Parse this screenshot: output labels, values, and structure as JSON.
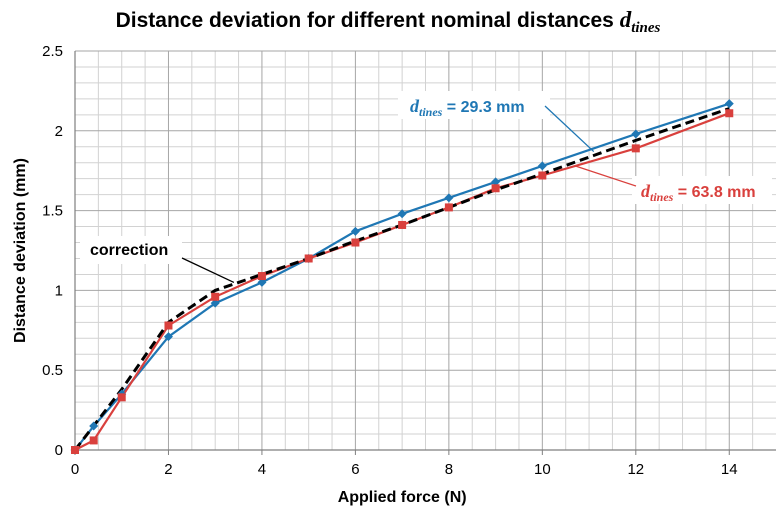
{
  "chart_data": {
    "type": "line",
    "title_prefix": "Distance deviation for different nominal distances ",
    "title_var": "d",
    "title_sub": "tines",
    "xlabel": "Applied force (N)",
    "ylabel": "Distance deviation (mm)",
    "xlim": [
      0,
      15
    ],
    "ylim": [
      0,
      2.5
    ],
    "x_ticks": [
      0,
      2,
      4,
      6,
      8,
      10,
      12,
      14
    ],
    "x_tick_labels": [
      "0",
      "2",
      "4",
      "6",
      "8",
      "10",
      "12",
      "14"
    ],
    "y_ticks": [
      0,
      0.5,
      1,
      1.5,
      2,
      2.5
    ],
    "y_tick_labels": [
      "0",
      "0.5",
      "1",
      "1.5",
      "2",
      "2.5"
    ],
    "grid": true,
    "series": [
      {
        "label_var": "d",
        "label_sub": "tines",
        "label_value": " = 29.3 mm",
        "color": "#1f77b4",
        "marker": "diamond",
        "x": [
          0,
          0.4,
          1,
          2,
          3,
          4,
          5,
          6,
          7,
          8,
          9,
          10,
          12,
          14
        ],
        "values": [
          0,
          0.15,
          0.35,
          0.71,
          0.92,
          1.05,
          1.2,
          1.37,
          1.48,
          1.58,
          1.68,
          1.78,
          1.98,
          2.17
        ]
      },
      {
        "label_var": "d",
        "label_sub": "tines",
        "label_value": " = 63.8 mm",
        "color": "#d9403d",
        "marker": "square",
        "x": [
          0,
          0.4,
          1,
          2,
          3,
          4,
          5,
          6,
          7,
          8,
          9,
          10,
          12,
          14
        ],
        "values": [
          0,
          0.06,
          0.33,
          0.78,
          0.96,
          1.09,
          1.2,
          1.3,
          1.41,
          1.52,
          1.64,
          1.72,
          1.89,
          2.11
        ]
      },
      {
        "label_text": "correction",
        "color": "#000000",
        "style": "dashed",
        "x": [
          0,
          1,
          2,
          3,
          4,
          5,
          6,
          7,
          8,
          9,
          10,
          12,
          14
        ],
        "values": [
          0,
          0.38,
          0.8,
          1.0,
          1.1,
          1.2,
          1.31,
          1.41,
          1.52,
          1.63,
          1.73,
          1.94,
          2.14
        ]
      }
    ]
  }
}
